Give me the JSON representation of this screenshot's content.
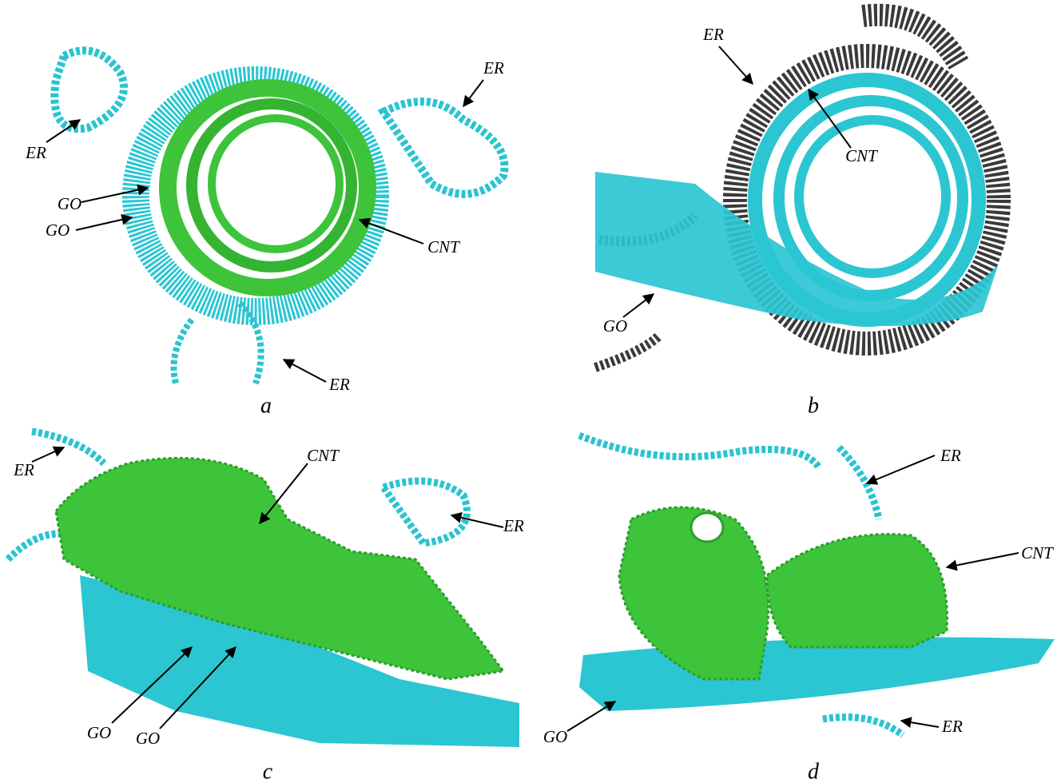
{
  "panels": [
    {
      "caption": "a",
      "labels": [
        "ER",
        "ER",
        "GO",
        "GO",
        "CNT",
        "ER"
      ]
    },
    {
      "caption": "b",
      "labels": [
        "ER",
        "CNT",
        "GO"
      ]
    },
    {
      "caption": "c",
      "labels": [
        "ER",
        "CNT",
        "ER",
        "GO",
        "GO"
      ]
    },
    {
      "caption": "d",
      "labels": [
        "ER",
        "CNT",
        "ER",
        "GO"
      ]
    }
  ]
}
